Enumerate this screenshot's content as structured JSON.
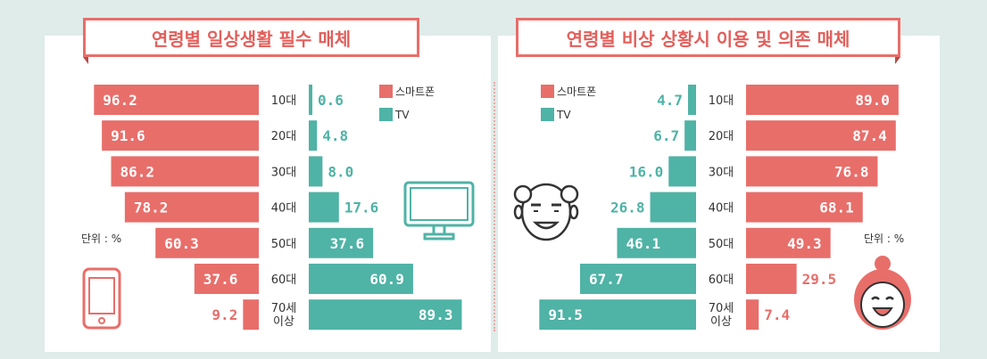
{
  "colors": {
    "smartphone": "#e86e6a",
    "tv": "#4fb3a6",
    "title": "#e25f5b",
    "label": "#333333"
  },
  "legend": {
    "smartphone": "스마트폰",
    "tv": "TV"
  },
  "unit_label": "단위 : %",
  "icons": {
    "left": [
      "smartphone-icon",
      "tv-monitor-icon"
    ],
    "right": [
      "elderly-man-face-icon",
      "elderly-woman-face-icon"
    ]
  },
  "chart_data": [
    {
      "type": "bar",
      "title": "연령별 일상생활 필수 매체",
      "categories": [
        "10대",
        "20대",
        "30대",
        "40대",
        "50대",
        "60대",
        "70세 이상"
      ],
      "series": [
        {
          "name": "스마트폰",
          "values": [
            96.2,
            91.6,
            86.2,
            78.2,
            60.3,
            37.6,
            9.2
          ]
        },
        {
          "name": "TV",
          "values": [
            0.6,
            4.8,
            8.0,
            17.6,
            37.6,
            60.9,
            89.3
          ]
        }
      ],
      "value_labels": {
        "스마트폰": [
          "96.2",
          "91.6",
          "86.2",
          "78.2",
          "60.3",
          "37.6",
          "9.2"
        ],
        "TV": [
          "0.6",
          "4.8",
          "8.0",
          "17.6",
          "37.6",
          "60.9",
          "89.3"
        ]
      },
      "orientation": "horizontal-butterfly",
      "xlim": [
        0,
        100
      ]
    },
    {
      "type": "bar",
      "title": "연령별 비상 상황시 이용 및 의존 매체",
      "categories": [
        "10대",
        "20대",
        "30대",
        "40대",
        "50대",
        "60대",
        "70세 이상"
      ],
      "series": [
        {
          "name": "TV",
          "values": [
            4.7,
            6.7,
            16.0,
            26.8,
            46.1,
            67.7,
            91.5
          ]
        },
        {
          "name": "스마트폰",
          "values": [
            89.0,
            87.4,
            76.8,
            68.1,
            49.3,
            29.5,
            7.4
          ]
        }
      ],
      "value_labels": {
        "TV": [
          "4.7",
          "6.7",
          "16.0",
          "26.8",
          "46.1",
          "67.7",
          "91.5"
        ],
        "스마트폰": [
          "89.0",
          "87.4",
          "76.8",
          "68.1",
          "49.3",
          "29.5",
          "7.4"
        ]
      },
      "orientation": "horizontal-butterfly",
      "xlim": [
        0,
        100
      ]
    }
  ]
}
